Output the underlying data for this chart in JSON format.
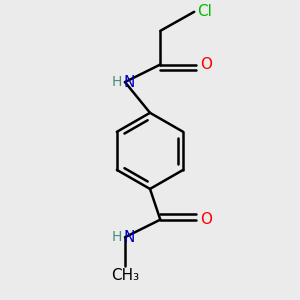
{
  "background_color": "#ebebeb",
  "atom_colors": {
    "C": "#000000",
    "N": "#0000cd",
    "O": "#ff0000",
    "Cl": "#00bb00",
    "H": "#4a8a7a"
  },
  "bond_color": "#000000",
  "bond_width": 1.8,
  "figsize": [
    3.0,
    3.0
  ],
  "dpi": 100,
  "font_size": 11,
  "font_size_H": 10
}
